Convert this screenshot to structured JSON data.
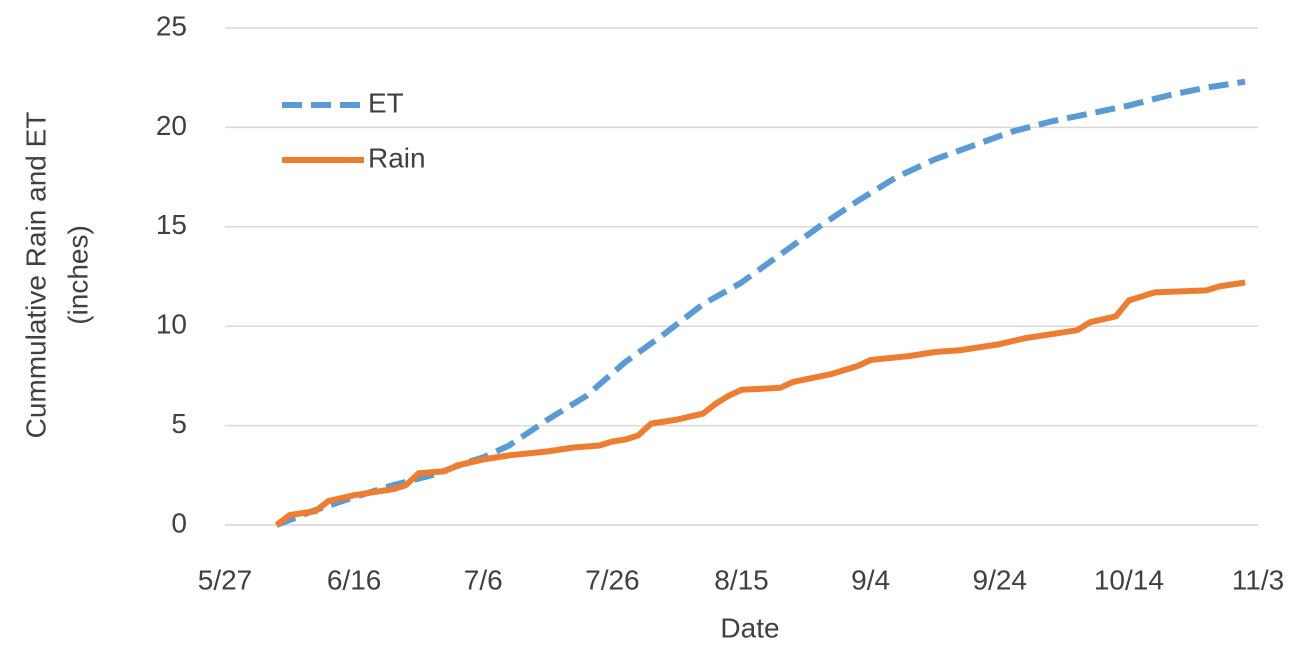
{
  "chart_data": {
    "type": "line",
    "xlabel": "Date",
    "ylabel": [
      "Cummulative Rain and ET",
      "(inches)"
    ],
    "xlim": [
      "5/27",
      "11/3"
    ],
    "xticks": [
      "5/27",
      "6/16",
      "7/6",
      "7/26",
      "8/15",
      "9/4",
      "9/24",
      "10/14",
      "11/3"
    ],
    "ylim": [
      0,
      25
    ],
    "yticks": [
      0,
      5,
      10,
      15,
      20,
      25
    ],
    "grid": true,
    "legend": "upper-left",
    "series": [
      {
        "name": "ET",
        "color": "#5b9bd5",
        "dash": true,
        "x": [
          "6/4",
          "6/10",
          "6/16",
          "6/22",
          "6/28",
          "7/4",
          "7/6",
          "7/10",
          "7/16",
          "7/22",
          "7/28",
          "8/3",
          "8/9",
          "8/15",
          "8/21",
          "8/27",
          "9/2",
          "9/8",
          "9/14",
          "9/20",
          "9/26",
          "10/2",
          "10/8",
          "10/14",
          "10/20",
          "10/26",
          "11/1"
        ],
        "values": [
          0,
          0.75,
          1.4,
          2.0,
          2.5,
          3.2,
          3.4,
          4.0,
          5.3,
          6.5,
          8.2,
          9.6,
          11.1,
          12.2,
          13.6,
          15.0,
          16.3,
          17.5,
          18.4,
          19.1,
          19.8,
          20.3,
          20.7,
          21.1,
          21.6,
          22.0,
          22.3
        ]
      },
      {
        "name": "Rain",
        "color": "#ed7d31",
        "dash": false,
        "x": [
          "6/4",
          "6/6",
          "6/10",
          "6/12",
          "6/16",
          "6/22",
          "6/24",
          "6/26",
          "6/30",
          "7/2",
          "7/6",
          "7/10",
          "7/16",
          "7/20",
          "7/24",
          "7/26",
          "7/28",
          "7/30",
          "8/1",
          "8/5",
          "8/9",
          "8/11",
          "8/13",
          "8/15",
          "8/21",
          "8/23",
          "8/29",
          "9/2",
          "9/4",
          "9/10",
          "9/14",
          "9/18",
          "9/24",
          "9/28",
          "10/2",
          "10/6",
          "10/8",
          "10/12",
          "10/14",
          "10/18",
          "10/26",
          "10/28",
          "11/1"
        ],
        "values": [
          0,
          0.5,
          0.7,
          1.2,
          1.5,
          1.8,
          2.0,
          2.6,
          2.7,
          3.0,
          3.3,
          3.5,
          3.7,
          3.9,
          4.0,
          4.2,
          4.3,
          4.5,
          5.1,
          5.3,
          5.6,
          6.1,
          6.5,
          6.8,
          6.9,
          7.2,
          7.6,
          8.0,
          8.3,
          8.5,
          8.7,
          8.8,
          9.1,
          9.4,
          9.6,
          9.8,
          10.2,
          10.5,
          11.3,
          11.7,
          11.8,
          12.0,
          12.2
        ]
      }
    ]
  }
}
